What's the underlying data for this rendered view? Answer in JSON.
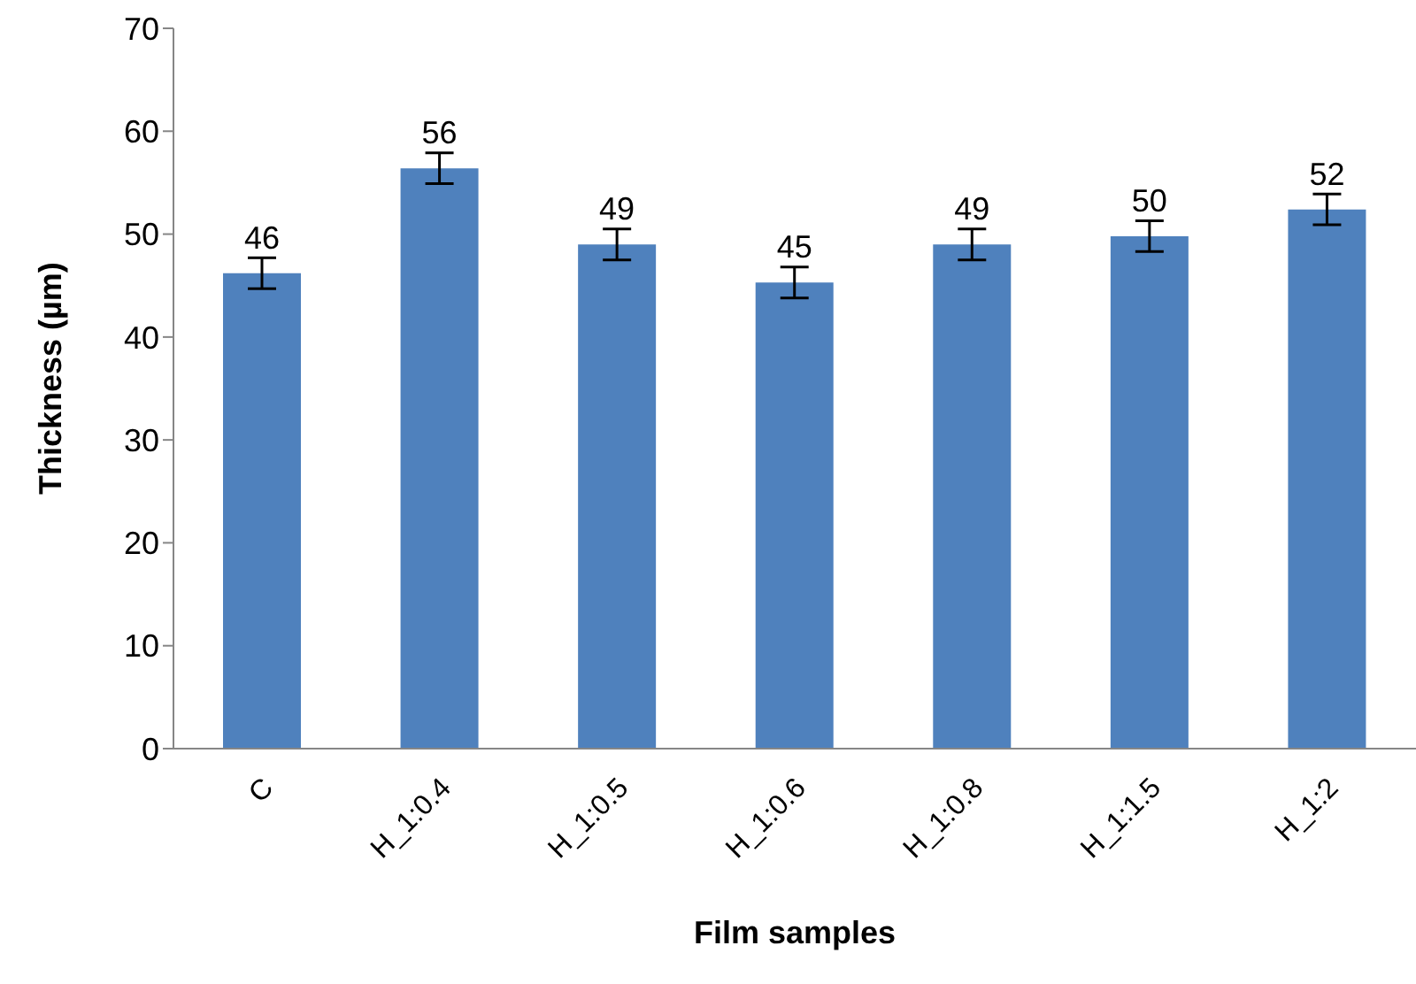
{
  "chart_data": {
    "type": "bar",
    "xlabel": "Film samples",
    "ylabel": "Thickness (µm)",
    "categories": [
      "C",
      "H_1:0.4",
      "H_1:0.5",
      "H_1:0.6",
      "H_1:0.8",
      "H_1:1.5",
      "H_1:2"
    ],
    "values": [
      46.2,
      56.4,
      49.0,
      45.3,
      49.0,
      49.8,
      52.4
    ],
    "errors": [
      1.5,
      1.5,
      1.5,
      1.5,
      1.5,
      1.5,
      1.5
    ],
    "value_labels": [
      "46",
      "56",
      "49",
      "45",
      "49",
      "50",
      "52"
    ],
    "color": "#4f81bd",
    "ylim": [
      0,
      70
    ],
    "yticks": [
      0,
      10,
      20,
      30,
      40,
      50,
      60,
      70
    ],
    "grid": false,
    "legend": false
  }
}
